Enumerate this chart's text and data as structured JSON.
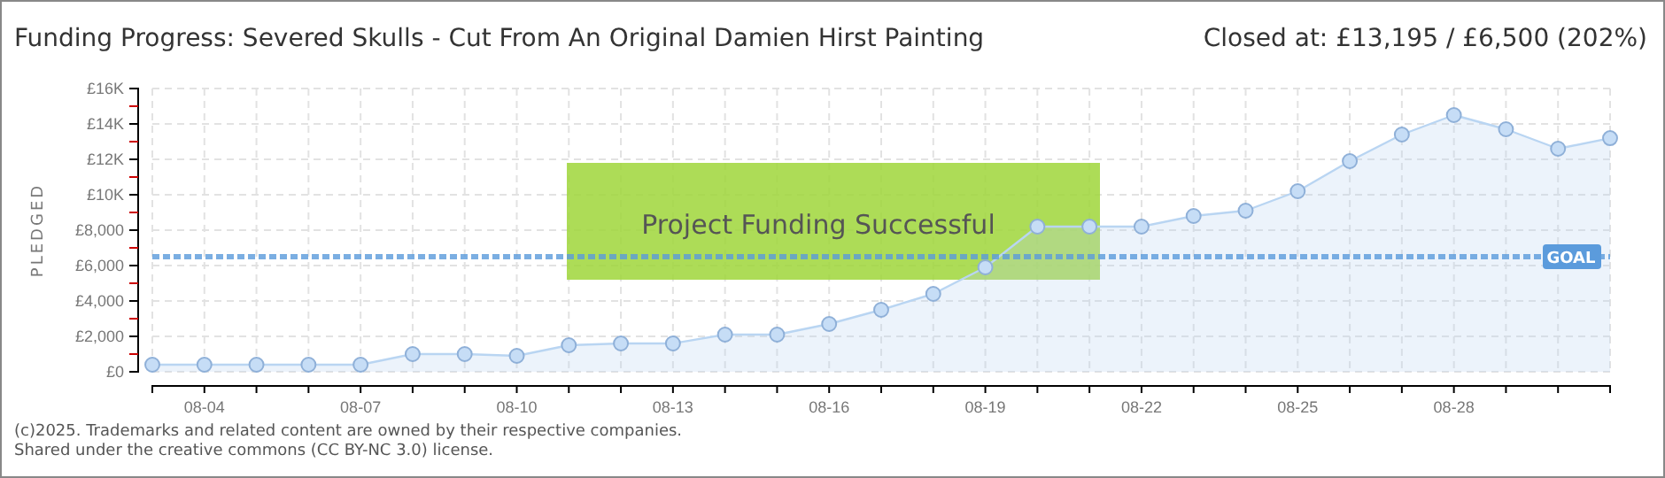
{
  "chart_data": {
    "type": "area",
    "title": "Funding Progress: Severed Skulls - Cut From An Original Damien Hirst Painting",
    "subtitle": "Closed at:  £13,195 / £6,500 (202%)",
    "ylabel": "PLEDGED",
    "categories": [
      null,
      "08-04",
      null,
      null,
      "08-07",
      null,
      null,
      "08-10",
      null,
      null,
      "08-13",
      null,
      null,
      "08-16",
      null,
      null,
      "08-19",
      null,
      null,
      "08-22",
      null,
      null,
      "08-25",
      null,
      null,
      "08-28",
      null,
      null,
      null
    ],
    "series": [
      {
        "color": "#b9d5f2",
        "values": [
          400,
          400,
          400,
          400,
          400,
          1000,
          1000,
          900,
          1500,
          1600,
          1600,
          2100,
          2100,
          2700,
          3500,
          4400,
          5900,
          8200,
          8200,
          8200,
          8800,
          9100,
          10200,
          11900,
          13400,
          14500,
          13700,
          12600,
          13195
        ]
      }
    ],
    "ylim": [
      0,
      16000
    ],
    "yticks": [
      {
        "value": 0,
        "label": "£0"
      },
      {
        "value": 1000,
        "label": null
      },
      {
        "value": 2000,
        "label": "£2,000"
      },
      {
        "value": 3000,
        "label": null
      },
      {
        "value": 4000,
        "label": "£4,000"
      },
      {
        "value": 5000,
        "label": null
      },
      {
        "value": 6000,
        "label": "£6,000"
      },
      {
        "value": 7000,
        "label": null
      },
      {
        "value": 8000,
        "label": "£8,000"
      },
      {
        "value": 9000,
        "label": null
      },
      {
        "value": 10000,
        "label": "£10K"
      },
      {
        "value": 11000,
        "label": null
      },
      {
        "value": 12000,
        "label": "£12K"
      },
      {
        "value": 13000,
        "label": null
      },
      {
        "value": 14000,
        "label": "£14K"
      },
      {
        "value": 15000,
        "label": null
      },
      {
        "value": 16000,
        "label": "£16K"
      }
    ],
    "ref_lines": [
      {
        "axis": "y",
        "value": 6500,
        "label": "GOAL",
        "color": "#5b9bdc",
        "line_style": "dotted"
      }
    ],
    "grid": true,
    "marker": "circle",
    "annotations": [
      "Project Funding Successful",
      "(c)2025. Trademarks and related content are owned by their respective companies.",
      "Shared under the creative commons (CC BY-NC 3.0) license."
    ]
  }
}
